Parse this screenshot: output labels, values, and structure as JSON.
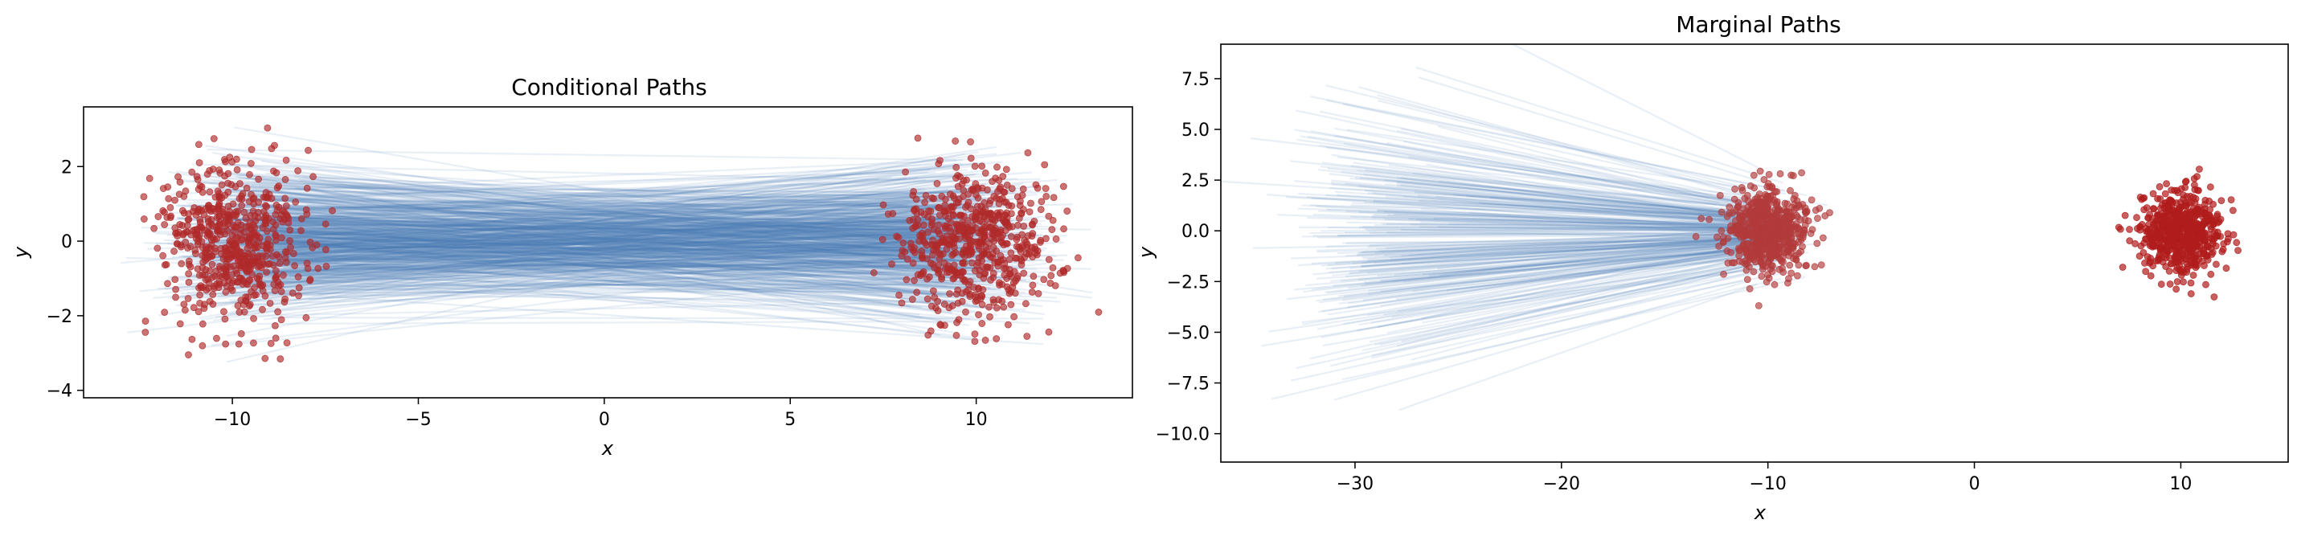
{
  "figure": {
    "background": "#ffffff"
  },
  "chart_data": [
    {
      "type": "scatter",
      "title": "Conditional Paths",
      "xlabel": "x",
      "ylabel": "y",
      "xlim": [
        -14,
        14.2
      ],
      "ylim": [
        -4.2,
        3.6
      ],
      "xticks": [
        -10,
        -5,
        0,
        5,
        10
      ],
      "yticks": [
        -4,
        -2,
        0,
        2
      ],
      "xtick_labels": [
        "−10",
        "−5",
        "0",
        "5",
        "10"
      ],
      "ytick_labels": [
        "−4",
        "−2",
        "0",
        "2"
      ],
      "grid": false,
      "colors": {
        "paths": "#4a7fb5",
        "points": "#b02a2a"
      },
      "series": [
        {
          "kind": "paths",
          "count": 600,
          "from_center": [
            -10,
            0
          ],
          "to_center": [
            10,
            0
          ],
          "spread": 1.0
        },
        {
          "kind": "points",
          "count": 600,
          "center": [
            -10,
            0
          ],
          "spread": 1.0
        },
        {
          "kind": "points",
          "count": 600,
          "center": [
            10,
            0
          ],
          "spread": 1.0
        }
      ]
    },
    {
      "type": "scatter",
      "title": "Marginal Paths",
      "xlabel": "x",
      "ylabel": "y",
      "xlim": [
        -36.5,
        15.2
      ],
      "ylim": [
        -11.4,
        9.2
      ],
      "xticks": [
        -30,
        -20,
        -10,
        0,
        10
      ],
      "yticks": [
        -10,
        -7.5,
        -5,
        -2.5,
        0,
        2.5,
        5,
        7.5
      ],
      "xtick_labels": [
        "−30",
        "−20",
        "−10",
        "0",
        "10"
      ],
      "ytick_labels": [
        "−10.0",
        "−7.5",
        "−5.0",
        "−2.5",
        "0.0",
        "2.5",
        "5.0",
        "7.5"
      ],
      "grid": false,
      "colors": {
        "paths": "#4a7fb5",
        "points_left": "#b23a3a",
        "points_right": "#b01c1c"
      },
      "series": [
        {
          "kind": "paths",
          "count": 280,
          "from_center": [
            -10,
            0
          ],
          "to_center": [
            -30,
            0
          ],
          "spread": 1.0,
          "end_scale": 3.5
        },
        {
          "kind": "points",
          "count": 600,
          "center": [
            -10,
            0
          ],
          "spread": 1.0
        },
        {
          "kind": "points",
          "count": 600,
          "center": [
            10,
            0
          ],
          "spread": 1.0
        }
      ]
    }
  ]
}
